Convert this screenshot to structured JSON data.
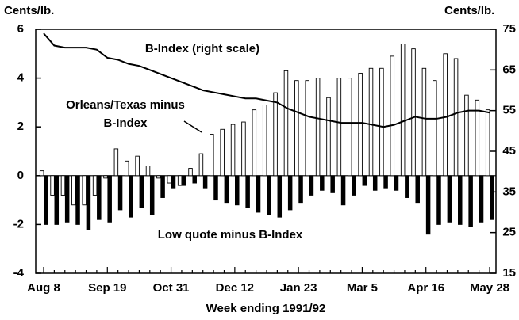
{
  "chart_data": {
    "type": "bar-line",
    "ylabel": "Cents/lb.",
    "y2label": "Cents/lb.",
    "xlabel": "Week ending 1991/92",
    "categories": [
      "Aug 8",
      null,
      null,
      null,
      null,
      null,
      "Sep 19",
      null,
      null,
      null,
      null,
      null,
      "Oct 31",
      null,
      null,
      null,
      null,
      null,
      "Dec 12",
      null,
      null,
      null,
      null,
      null,
      "Jan 23",
      null,
      null,
      null,
      null,
      null,
      "Mar 5",
      null,
      null,
      null,
      null,
      null,
      "Apr 16",
      null,
      null,
      null,
      null,
      null,
      "May 28"
    ],
    "ylim": [
      -4,
      6
    ],
    "yticks": [
      -4,
      -2,
      0,
      2,
      4,
      6
    ],
    "y2lim": [
      15,
      75
    ],
    "y2ticks": [
      15,
      25,
      35,
      45,
      55,
      65,
      75
    ],
    "series": [
      {
        "name": "Orleans/Texas minus B-Index",
        "color": "#ffffff",
        "values": [
          0.2,
          -0.8,
          -0.8,
          -1.2,
          -1.2,
          -0.8,
          -0.1,
          1.1,
          0.6,
          0.8,
          0.4,
          -0.1,
          -0.3,
          -0.4,
          0.3,
          0.9,
          1.7,
          1.9,
          2.1,
          2.2,
          2.7,
          2.9,
          3.4,
          4.3,
          3.9,
          3.9,
          4.0,
          3.2,
          4.0,
          4.0,
          4.2,
          4.4,
          4.4,
          4.9,
          5.4,
          5.2,
          4.4,
          3.9,
          5.0,
          4.8,
          3.3,
          3.1,
          2.7
        ]
      },
      {
        "name": "Low quote minus B-Index",
        "color": "#000000",
        "values": [
          -2.0,
          -2.0,
          -1.9,
          -2.0,
          -2.2,
          -1.8,
          -1.9,
          -1.4,
          -1.7,
          -1.3,
          -1.6,
          -0.9,
          -0.5,
          -0.4,
          -0.3,
          -0.5,
          -1.0,
          -1.1,
          -1.2,
          -1.3,
          -1.5,
          -1.6,
          -1.7,
          -1.4,
          -1.1,
          -0.8,
          -0.6,
          -0.7,
          -1.2,
          -0.8,
          -0.4,
          -0.6,
          -0.5,
          -0.6,
          -0.9,
          -1.1,
          -2.4,
          -2.0,
          -1.9,
          -2.0,
          -2.1,
          -1.9,
          -1.8
        ]
      },
      {
        "name": "B-Index (right scale)",
        "color": "#000000",
        "axis": "y2",
        "values": [
          74,
          71,
          70.5,
          70.5,
          70.5,
          70,
          68,
          67.5,
          66.5,
          66,
          65,
          64,
          63,
          62,
          61,
          60,
          59.5,
          59,
          58.5,
          58,
          58,
          57.5,
          57,
          55.5,
          54.5,
          53.5,
          53,
          52.5,
          52,
          52,
          52,
          51.5,
          51,
          51.5,
          52.5,
          53.5,
          53,
          53,
          53.5,
          54.5,
          55,
          55,
          54.5
        ]
      }
    ]
  }
}
